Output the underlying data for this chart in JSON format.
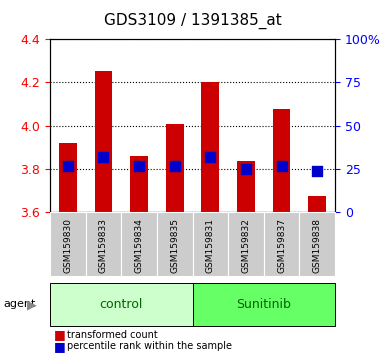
{
  "title": "GDS3109 / 1391385_at",
  "samples": [
    "GSM159830",
    "GSM159833",
    "GSM159834",
    "GSM159835",
    "GSM159831",
    "GSM159832",
    "GSM159837",
    "GSM159838"
  ],
  "bar_tops": [
    3.92,
    4.25,
    3.86,
    4.01,
    4.2,
    3.835,
    4.075,
    3.675
  ],
  "bar_bottom": 3.6,
  "blue_vals": [
    3.815,
    3.855,
    3.815,
    3.815,
    3.855,
    3.8,
    3.815,
    3.79
  ],
  "ylim_left": [
    3.6,
    4.4
  ],
  "ylim_right": [
    0,
    100
  ],
  "yticks_left": [
    3.6,
    3.8,
    4.0,
    4.2,
    4.4
  ],
  "yticks_right": [
    0,
    25,
    50,
    75,
    100
  ],
  "bar_color": "#cc0000",
  "blue_color": "#0000cc",
  "control_color": "#ccffcc",
  "sunitinib_color": "#66ff66",
  "group_label_color": "#006600",
  "tick_bg_color": "#cccccc",
  "agent_label": "agent",
  "legend_red_label": "transformed count",
  "legend_blue_label": "percentile rank within the sample",
  "control_samples": [
    0,
    1,
    2,
    3
  ],
  "sunitinib_samples": [
    4,
    5,
    6,
    7
  ]
}
